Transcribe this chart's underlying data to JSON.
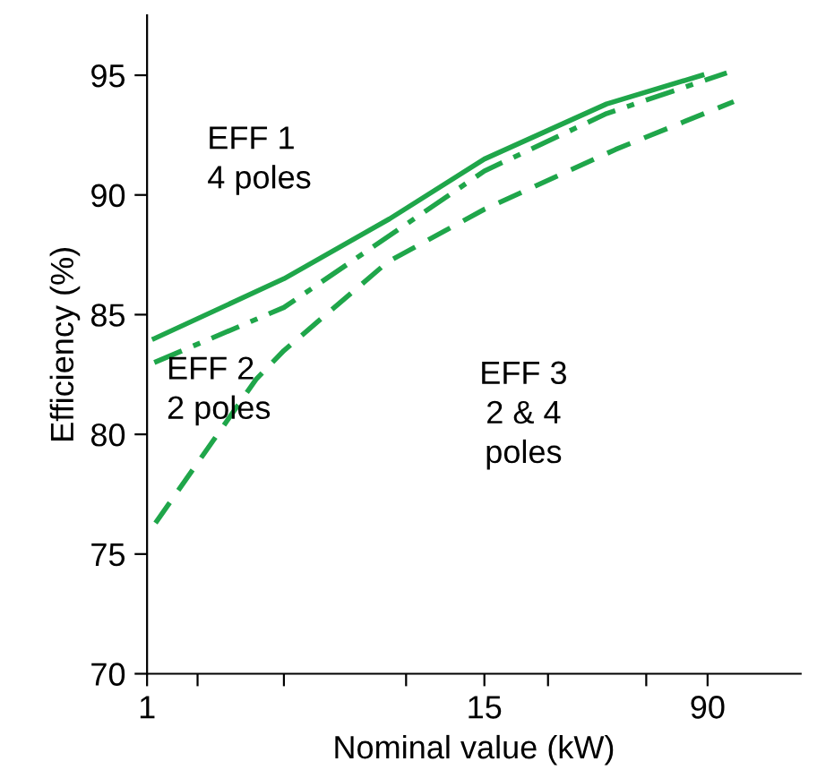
{
  "chart_data": {
    "type": "line",
    "xlabel": "Nominal value (kW)",
    "ylabel": "Efficiency (%)",
    "log": "x",
    "xlim": [
      1,
      190
    ],
    "ylim": [
      70,
      97.5
    ],
    "xticks": [
      1,
      {
        "value": 1.5,
        "label": null
      },
      {
        "value": 3,
        "label": null
      },
      {
        "value": 8,
        "label": null
      },
      15,
      {
        "value": 25,
        "label": null
      },
      {
        "value": 55,
        "label": null
      },
      90
    ],
    "yticks": [
      70,
      75,
      80,
      85,
      90,
      95
    ],
    "grid": false,
    "marker": "none",
    "series": [
      {
        "color": "#1fa64a",
        "line_style": "solid",
        "x": [
          1.06,
          3,
          7,
          15,
          40,
          86
        ],
        "values": [
          84.0,
          86.5,
          89.0,
          91.5,
          93.8,
          95.0
        ]
      },
      {
        "color": "#1fa64a",
        "line_style": "dashdot",
        "x": [
          1.06,
          3,
          15,
          40,
          105
        ],
        "values": [
          83.0,
          85.3,
          91.0,
          93.4,
          95.1
        ]
      },
      {
        "color": "#1fa64a",
        "line_style": "dashed",
        "x": [
          1.07,
          2.4,
          3,
          6.9,
          15,
          43,
          111
        ],
        "values": [
          76.3,
          82.3,
          83.5,
          87.2,
          89.4,
          91.9,
          93.9
        ]
      }
    ],
    "annotations": [
      "EFF 1\n4 poles",
      "EFF 2\n2 poles",
      "EFF 3\n2 & 4\npoles"
    ]
  }
}
